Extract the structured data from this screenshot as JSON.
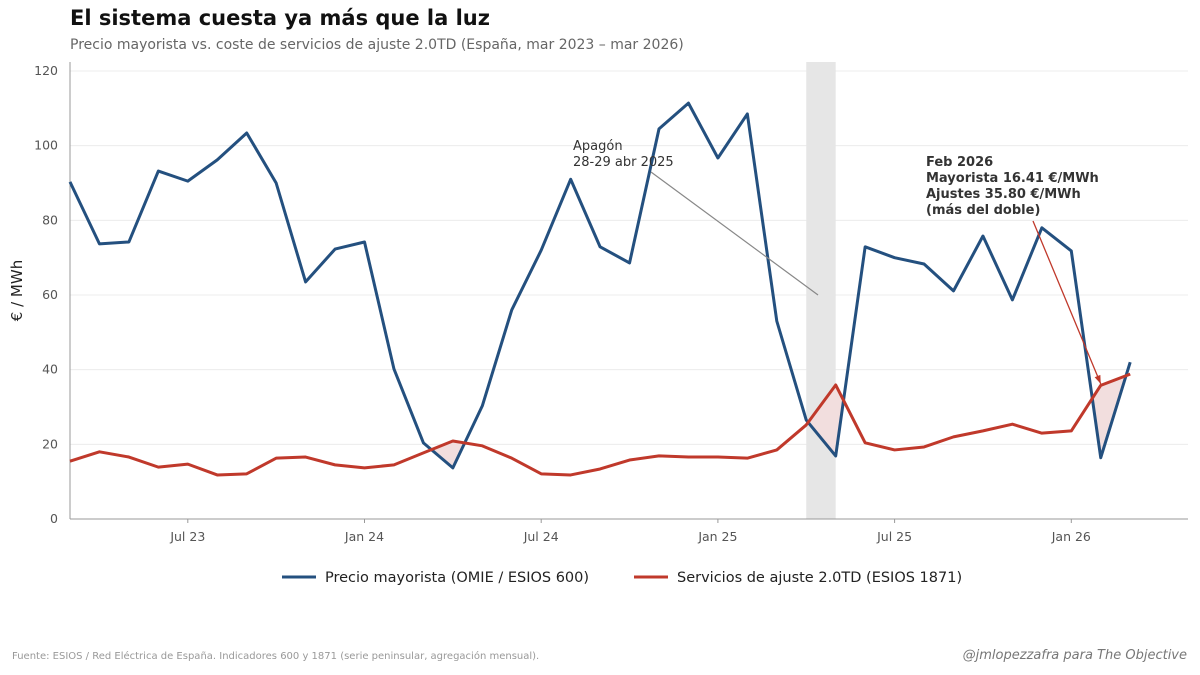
{
  "title": "El sistema cuesta ya más que la luz",
  "subtitle": "Precio mayorista vs. coste de servicios de ajuste 2.0TD (España, mar 2023 – mar 2026)",
  "source": "Fuente: ESIOS / Red Eléctrica de España. Indicadores 600 y 1871 (serie peninsular, agregación mensual).",
  "credit": "@jmlopezzafra para The Objective",
  "chart_data": {
    "type": "line",
    "title": "El sistema cuesta ya más que la luz",
    "xlabel": "",
    "ylabel": "€ / MWh",
    "ylim": [
      0,
      122
    ],
    "yticks": [
      0,
      20,
      40,
      60,
      80,
      100,
      120
    ],
    "xticks": [
      {
        "label": "Jul 23",
        "month": "2023-07"
      },
      {
        "label": "Jan 24",
        "month": "2024-01"
      },
      {
        "label": "Jul 24",
        "month": "2024-07"
      },
      {
        "label": "Jan 25",
        "month": "2025-01"
      },
      {
        "label": "Jul 25",
        "month": "2025-07"
      },
      {
        "label": "Jan 26",
        "month": "2026-01"
      }
    ],
    "grid": "horizontal",
    "legend_placement": "bottom",
    "x": [
      "2023-03",
      "2023-04",
      "2023-05",
      "2023-06",
      "2023-07",
      "2023-08",
      "2023-09",
      "2023-10",
      "2023-11",
      "2023-12",
      "2024-01",
      "2024-02",
      "2024-03",
      "2024-04",
      "2024-05",
      "2024-06",
      "2024-07",
      "2024-08",
      "2024-09",
      "2024-10",
      "2024-11",
      "2024-12",
      "2025-01",
      "2025-02",
      "2025-03",
      "2025-04",
      "2025-05",
      "2025-06",
      "2025-07",
      "2025-08",
      "2025-09",
      "2025-10",
      "2025-11",
      "2025-12",
      "2026-01",
      "2026-02",
      "2026-03"
    ],
    "series": [
      {
        "name": "Precio mayorista (OMIE / ESIOS 600)",
        "color": "#24507f",
        "values": [
          90.3,
          73.7,
          74.2,
          93.2,
          90.5,
          96.2,
          103.4,
          90.0,
          63.5,
          72.3,
          74.2,
          40.2,
          20.4,
          13.7,
          30.3,
          56.0,
          72.0,
          91.0,
          72.9,
          68.6,
          104.5,
          111.4,
          96.7,
          108.5,
          53.0,
          26.5,
          16.9,
          72.9,
          70.0,
          68.3,
          61.1,
          75.8,
          58.7,
          78.0,
          71.8,
          16.41,
          42.0
        ]
      },
      {
        "name": "Servicios de ajuste 2.0TD (ESIOS 1871)",
        "color": "#c0392b",
        "values": [
          15.5,
          18.0,
          16.6,
          13.9,
          14.7,
          11.8,
          12.1,
          16.3,
          16.6,
          14.5,
          13.7,
          14.5,
          17.7,
          20.9,
          19.6,
          16.3,
          12.1,
          11.8,
          13.4,
          15.8,
          16.9,
          16.6,
          16.6,
          16.3,
          18.5,
          25.2,
          35.9,
          20.4,
          18.5,
          19.3,
          22.0,
          23.6,
          25.4,
          23.0,
          23.6,
          35.8,
          38.8
        ]
      }
    ],
    "fill_between_color": "#f2dede",
    "highlight_band": {
      "from": "2025-04",
      "to": "2025-05",
      "color": "#e6e6e6"
    },
    "annotations": [
      {
        "lines": [
          "Apagón",
          "28-29 abr 2025"
        ],
        "bold": false,
        "target_month_index": 25.4,
        "target_value": 60,
        "arrow_color": "#888888"
      },
      {
        "lines": [
          "Feb 2026",
          "Mayorista 16.41 €/MWh",
          "Ajustes 35.80 €/MWh",
          "(más del doble)"
        ],
        "bold": true,
        "target_month": "2026-02",
        "target_value": 37,
        "arrow_color": "#c0392b"
      }
    ]
  }
}
